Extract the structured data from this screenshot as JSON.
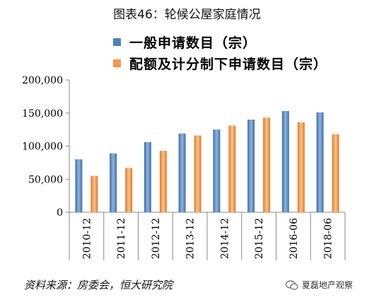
{
  "title": "图表46：轮候公屋家庭情况",
  "source": "资料来源：房委会，恒大研究院",
  "watermark": "夏磊地产观察",
  "chart_data": {
    "type": "bar",
    "categories": [
      "2010-12",
      "2011-12",
      "2012-12",
      "2013-12",
      "2014-12",
      "2015-12",
      "2016-06",
      "2018-06"
    ],
    "series": [
      {
        "name": "一般申请数目（宗）",
        "color": "#4f81bd",
        "values": [
          80000,
          89000,
          106000,
          119000,
          125000,
          140000,
          153000,
          151000
        ]
      },
      {
        "name": "配额及计分制下申请数目（宗）",
        "color": "#f79646",
        "values": [
          55000,
          67000,
          93000,
          116000,
          131000,
          143000,
          136000,
          118000
        ]
      }
    ],
    "yticks": [
      "0",
      "50,000",
      "100,000",
      "150,000",
      "200,000"
    ],
    "ylim": [
      0,
      200000
    ],
    "grid": false,
    "legend_position": "top"
  }
}
